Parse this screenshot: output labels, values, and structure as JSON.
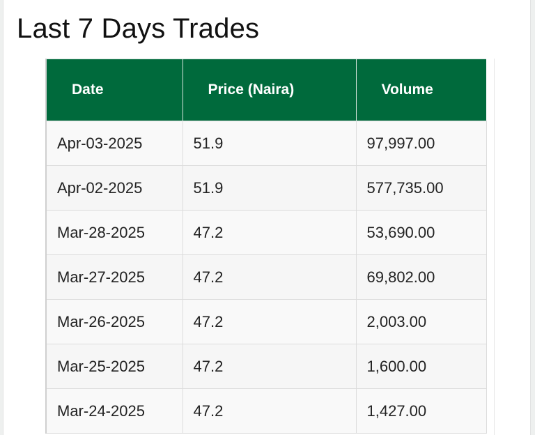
{
  "page": {
    "title": "Last 7 Days Trades"
  },
  "table": {
    "headers": {
      "date": "Date",
      "price": "Price (Naira)",
      "volume": "Volume"
    },
    "rows": [
      {
        "date": "Apr-03-2025",
        "price": "51.9",
        "volume": "97,997.00"
      },
      {
        "date": "Apr-02-2025",
        "price": "51.9",
        "volume": "577,735.00"
      },
      {
        "date": "Mar-28-2025",
        "price": "47.2",
        "volume": "53,690.00"
      },
      {
        "date": "Mar-27-2025",
        "price": "47.2",
        "volume": "69,802.00"
      },
      {
        "date": "Mar-26-2025",
        "price": "47.2",
        "volume": "2,003.00"
      },
      {
        "date": "Mar-25-2025",
        "price": "47.2",
        "volume": "1,600.00"
      },
      {
        "date": "Mar-24-2025",
        "price": "47.2",
        "volume": "1,427.00"
      }
    ]
  },
  "colors": {
    "header_bg": "#006a3c",
    "header_text": "#ffffff"
  }
}
